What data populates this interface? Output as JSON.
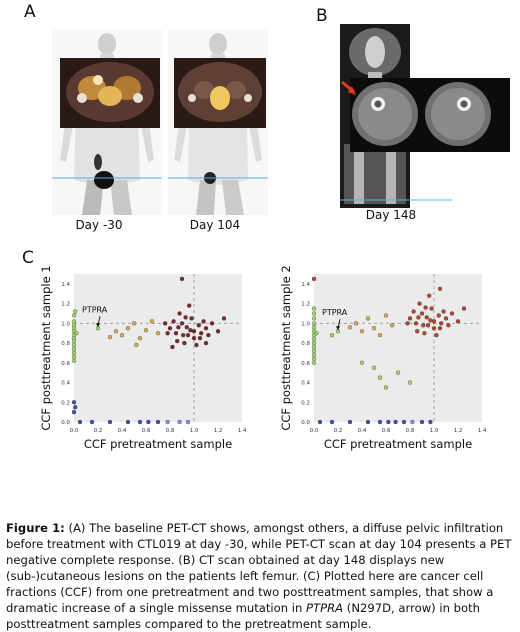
{
  "panels": {
    "a_letter": "A",
    "b_letter": "B",
    "c_letter": "C",
    "a_day1": "Day -30",
    "a_day2": "Day 104",
    "b_day": "Day 148"
  },
  "chart_data": [
    {
      "type": "scatter",
      "title": "",
      "xlabel": "CCF pretreatment sample",
      "ylabel": "CCF posttreatment sample 1",
      "xlim": [
        0,
        1.4
      ],
      "ylim": [
        0,
        1.5
      ],
      "xticks": [
        "0.0",
        "0.2",
        "0.4",
        "0.6",
        "0.8",
        "1.0",
        "1.2",
        "1.4"
      ],
      "yticks": [
        "0.0",
        "0.2",
        "0.4",
        "0.6",
        "0.8",
        "1.0",
        "1.2",
        "1.4"
      ],
      "annotation": "PTPRA",
      "annotation_point": [
        0.2,
        0.95
      ],
      "grid": false,
      "colors": {
        "green": "#9bcf63",
        "orange": "#d7a24a",
        "red": "#6b1618",
        "blue": "#2b3fa8",
        "lightblue": "#6d8fd8"
      },
      "points": [
        {
          "x": 0.0,
          "y": 1.02,
          "c": "green"
        },
        {
          "x": 0.0,
          "y": 0.98,
          "c": "green"
        },
        {
          "x": 0.0,
          "y": 0.95,
          "c": "green"
        },
        {
          "x": 0.0,
          "y": 0.92,
          "c": "green"
        },
        {
          "x": 0.0,
          "y": 0.88,
          "c": "green"
        },
        {
          "x": 0.0,
          "y": 0.85,
          "c": "green"
        },
        {
          "x": 0.0,
          "y": 0.82,
          "c": "green"
        },
        {
          "x": 0.0,
          "y": 0.78,
          "c": "green"
        },
        {
          "x": 0.0,
          "y": 0.74,
          "c": "green"
        },
        {
          "x": 0.0,
          "y": 0.7,
          "c": "green"
        },
        {
          "x": 0.0,
          "y": 0.66,
          "c": "green"
        },
        {
          "x": 0.0,
          "y": 0.62,
          "c": "green"
        },
        {
          "x": 0.0,
          "y": 1.08,
          "c": "green"
        },
        {
          "x": 0.01,
          "y": 1.12,
          "c": "green"
        },
        {
          "x": 0.02,
          "y": 0.9,
          "c": "green"
        },
        {
          "x": 0.2,
          "y": 0.95,
          "c": "green"
        },
        {
          "x": 0.35,
          "y": 0.92,
          "c": "orange"
        },
        {
          "x": 0.4,
          "y": 0.88,
          "c": "orange"
        },
        {
          "x": 0.45,
          "y": 0.95,
          "c": "orange"
        },
        {
          "x": 0.5,
          "y": 1.0,
          "c": "orange"
        },
        {
          "x": 0.55,
          "y": 0.85,
          "c": "orange"
        },
        {
          "x": 0.6,
          "y": 0.93,
          "c": "orange"
        },
        {
          "x": 0.52,
          "y": 0.78,
          "c": "orange"
        },
        {
          "x": 0.65,
          "y": 1.02,
          "c": "orange"
        },
        {
          "x": 0.7,
          "y": 0.9,
          "c": "orange"
        },
        {
          "x": 0.3,
          "y": 0.86,
          "c": "orange"
        },
        {
          "x": 0.8,
          "y": 0.95,
          "c": "red"
        },
        {
          "x": 0.85,
          "y": 0.9,
          "c": "red"
        },
        {
          "x": 0.9,
          "y": 1.0,
          "c": "red"
        },
        {
          "x": 0.95,
          "y": 0.88,
          "c": "red"
        },
        {
          "x": 1.0,
          "y": 0.92,
          "c": "red"
        },
        {
          "x": 1.05,
          "y": 0.85,
          "c": "red"
        },
        {
          "x": 1.1,
          "y": 0.95,
          "c": "red"
        },
        {
          "x": 0.88,
          "y": 1.1,
          "c": "red"
        },
        {
          "x": 0.92,
          "y": 0.8,
          "c": "red"
        },
        {
          "x": 0.98,
          "y": 1.05,
          "c": "red"
        },
        {
          "x": 1.02,
          "y": 0.78,
          "c": "red"
        },
        {
          "x": 0.86,
          "y": 0.82,
          "c": "red"
        },
        {
          "x": 0.94,
          "y": 0.96,
          "c": "red"
        },
        {
          "x": 1.08,
          "y": 1.02,
          "c": "red"
        },
        {
          "x": 1.12,
          "y": 0.88,
          "c": "red"
        },
        {
          "x": 0.83,
          "y": 1.02,
          "c": "red"
        },
        {
          "x": 0.96,
          "y": 1.18,
          "c": "red"
        },
        {
          "x": 0.9,
          "y": 1.45,
          "c": "red"
        },
        {
          "x": 1.15,
          "y": 1.0,
          "c": "red"
        },
        {
          "x": 1.2,
          "y": 0.92,
          "c": "red"
        },
        {
          "x": 0.78,
          "y": 0.9,
          "c": "red"
        },
        {
          "x": 1.0,
          "y": 0.85,
          "c": "red"
        },
        {
          "x": 0.97,
          "y": 0.93,
          "c": "red"
        },
        {
          "x": 1.04,
          "y": 0.98,
          "c": "red"
        },
        {
          "x": 0.91,
          "y": 0.88,
          "c": "red"
        },
        {
          "x": 0.87,
          "y": 0.96,
          "c": "red"
        },
        {
          "x": 1.06,
          "y": 0.9,
          "c": "red"
        },
        {
          "x": 0.93,
          "y": 1.06,
          "c": "red"
        },
        {
          "x": 1.25,
          "y": 1.05,
          "c": "red"
        },
        {
          "x": 0.76,
          "y": 1.0,
          "c": "red"
        },
        {
          "x": 0.82,
          "y": 0.76,
          "c": "red"
        },
        {
          "x": 1.1,
          "y": 0.8,
          "c": "red"
        },
        {
          "x": 0.0,
          "y": 0.2,
          "c": "blue"
        },
        {
          "x": 0.0,
          "y": 0.1,
          "c": "blue"
        },
        {
          "x": 0.01,
          "y": 0.15,
          "c": "blue"
        },
        {
          "x": 0.05,
          "y": 0.0,
          "c": "blue"
        },
        {
          "x": 0.15,
          "y": 0.0,
          "c": "blue"
        },
        {
          "x": 0.3,
          "y": 0.0,
          "c": "blue"
        },
        {
          "x": 0.45,
          "y": 0.0,
          "c": "blue"
        },
        {
          "x": 0.55,
          "y": 0.0,
          "c": "blue"
        },
        {
          "x": 0.62,
          "y": 0.0,
          "c": "blue"
        },
        {
          "x": 0.7,
          "y": 0.0,
          "c": "blue"
        },
        {
          "x": 0.78,
          "y": 0.0,
          "c": "lightblue"
        },
        {
          "x": 0.88,
          "y": 0.0,
          "c": "lightblue"
        },
        {
          "x": 0.95,
          "y": 0.0,
          "c": "lightblue"
        }
      ]
    },
    {
      "type": "scatter",
      "title": "",
      "xlabel": "CCF pretreatment sample",
      "ylabel": "CCF posttreatment sample 2",
      "xlim": [
        0,
        1.4
      ],
      "ylim": [
        0,
        1.5
      ],
      "xticks": [
        "0.0",
        "0.2",
        "0.4",
        "0.6",
        "0.8",
        "1.0",
        "1.2",
        "1.4"
      ],
      "yticks": [
        "0.0",
        "0.2",
        "0.4",
        "0.6",
        "0.8",
        "1.0",
        "1.2",
        "1.4"
      ],
      "annotation": "PTPRA",
      "annotation_point": [
        0.2,
        0.92
      ],
      "grid": false,
      "colors": {
        "green": "#9bcf63",
        "orange": "#d7a24a",
        "red": "#a8381c",
        "blue": "#2b3fa8",
        "lightblue": "#6d8fd8"
      },
      "points": [
        {
          "x": 0.0,
          "y": 1.05,
          "c": "green"
        },
        {
          "x": 0.0,
          "y": 1.0,
          "c": "green"
        },
        {
          "x": 0.0,
          "y": 0.96,
          "c": "green"
        },
        {
          "x": 0.0,
          "y": 0.92,
          "c": "green"
        },
        {
          "x": 0.0,
          "y": 0.88,
          "c": "green"
        },
        {
          "x": 0.0,
          "y": 0.84,
          "c": "green"
        },
        {
          "x": 0.0,
          "y": 0.8,
          "c": "green"
        },
        {
          "x": 0.0,
          "y": 0.76,
          "c": "green"
        },
        {
          "x": 0.0,
          "y": 0.72,
          "c": "green"
        },
        {
          "x": 0.0,
          "y": 0.68,
          "c": "green"
        },
        {
          "x": 0.0,
          "y": 0.64,
          "c": "green"
        },
        {
          "x": 0.0,
          "y": 0.6,
          "c": "green"
        },
        {
          "x": 0.0,
          "y": 1.1,
          "c": "green"
        },
        {
          "x": 0.0,
          "y": 1.15,
          "c": "green"
        },
        {
          "x": 0.02,
          "y": 0.9,
          "c": "green"
        },
        {
          "x": 0.2,
          "y": 0.92,
          "c": "green"
        },
        {
          "x": 0.15,
          "y": 0.88,
          "c": "green"
        },
        {
          "x": 0.5,
          "y": 0.55,
          "c": "green"
        },
        {
          "x": 0.55,
          "y": 0.45,
          "c": "green"
        },
        {
          "x": 0.6,
          "y": 0.35,
          "c": "green"
        },
        {
          "x": 0.7,
          "y": 0.5,
          "c": "green"
        },
        {
          "x": 0.4,
          "y": 0.6,
          "c": "green"
        },
        {
          "x": 0.8,
          "y": 0.4,
          "c": "green"
        },
        {
          "x": 0.35,
          "y": 1.0,
          "c": "orange"
        },
        {
          "x": 0.4,
          "y": 0.92,
          "c": "orange"
        },
        {
          "x": 0.45,
          "y": 1.05,
          "c": "orange"
        },
        {
          "x": 0.5,
          "y": 0.95,
          "c": "orange"
        },
        {
          "x": 0.55,
          "y": 0.88,
          "c": "orange"
        },
        {
          "x": 0.6,
          "y": 1.08,
          "c": "orange"
        },
        {
          "x": 0.3,
          "y": 0.96,
          "c": "orange"
        },
        {
          "x": 0.65,
          "y": 0.98,
          "c": "orange"
        },
        {
          "x": 0.8,
          "y": 1.05,
          "c": "red"
        },
        {
          "x": 0.85,
          "y": 1.0,
          "c": "red"
        },
        {
          "x": 0.9,
          "y": 1.1,
          "c": "red"
        },
        {
          "x": 0.95,
          "y": 0.98,
          "c": "red"
        },
        {
          "x": 1.0,
          "y": 1.02,
          "c": "red"
        },
        {
          "x": 1.05,
          "y": 0.95,
          "c": "red"
        },
        {
          "x": 1.1,
          "y": 1.05,
          "c": "red"
        },
        {
          "x": 0.88,
          "y": 1.2,
          "c": "red"
        },
        {
          "x": 0.92,
          "y": 0.9,
          "c": "red"
        },
        {
          "x": 0.98,
          "y": 1.15,
          "c": "red"
        },
        {
          "x": 1.02,
          "y": 0.88,
          "c": "red"
        },
        {
          "x": 0.86,
          "y": 0.92,
          "c": "red"
        },
        {
          "x": 0.94,
          "y": 1.06,
          "c": "red"
        },
        {
          "x": 1.08,
          "y": 1.12,
          "c": "red"
        },
        {
          "x": 1.12,
          "y": 0.98,
          "c": "red"
        },
        {
          "x": 0.83,
          "y": 1.12,
          "c": "red"
        },
        {
          "x": 0.96,
          "y": 1.28,
          "c": "red"
        },
        {
          "x": 1.05,
          "y": 1.35,
          "c": "red"
        },
        {
          "x": 1.15,
          "y": 1.1,
          "c": "red"
        },
        {
          "x": 1.2,
          "y": 1.02,
          "c": "red"
        },
        {
          "x": 0.78,
          "y": 1.0,
          "c": "red"
        },
        {
          "x": 1.0,
          "y": 0.95,
          "c": "red"
        },
        {
          "x": 0.97,
          "y": 1.03,
          "c": "red"
        },
        {
          "x": 1.04,
          "y": 1.08,
          "c": "red"
        },
        {
          "x": 0.91,
          "y": 0.98,
          "c": "red"
        },
        {
          "x": 0.87,
          "y": 1.06,
          "c": "red"
        },
        {
          "x": 1.06,
          "y": 1.0,
          "c": "red"
        },
        {
          "x": 0.93,
          "y": 1.16,
          "c": "red"
        },
        {
          "x": 0.0,
          "y": 1.45,
          "c": "red"
        },
        {
          "x": 1.25,
          "y": 1.15,
          "c": "red"
        },
        {
          "x": 0.05,
          "y": 0.0,
          "c": "blue"
        },
        {
          "x": 0.15,
          "y": 0.0,
          "c": "blue"
        },
        {
          "x": 0.3,
          "y": 0.0,
          "c": "blue"
        },
        {
          "x": 0.45,
          "y": 0.0,
          "c": "blue"
        },
        {
          "x": 0.55,
          "y": 0.0,
          "c": "blue"
        },
        {
          "x": 0.62,
          "y": 0.0,
          "c": "blue"
        },
        {
          "x": 0.68,
          "y": 0.0,
          "c": "blue"
        },
        {
          "x": 0.75,
          "y": 0.0,
          "c": "blue"
        },
        {
          "x": 0.82,
          "y": 0.0,
          "c": "lightblue"
        },
        {
          "x": 0.9,
          "y": 0.0,
          "c": "blue"
        },
        {
          "x": 0.97,
          "y": 0.0,
          "c": "blue"
        }
      ]
    }
  ],
  "caption": {
    "fig_label": "Figure 1:",
    "text1": " (A) The baseline PET-CT shows, amongst others, a diffuse pelvic infiltration before treatment with CTL019 at day -30, while PET-CT scan at day 104 presents a PET negative complete response. (B) CT scan obtained at day 148 displays new (sub-)cutaneous lesions on the patients left femur. (C) Plotted here are cancer cell fractions (CCF) from one pretreatment and two posttreatment samples, that show a dramatic increase of a single missense mutation in ",
    "gene": "PTPRA",
    "text2": " (N297D, arrow) in both posttreatment samples compared to the pretreatment sample."
  }
}
